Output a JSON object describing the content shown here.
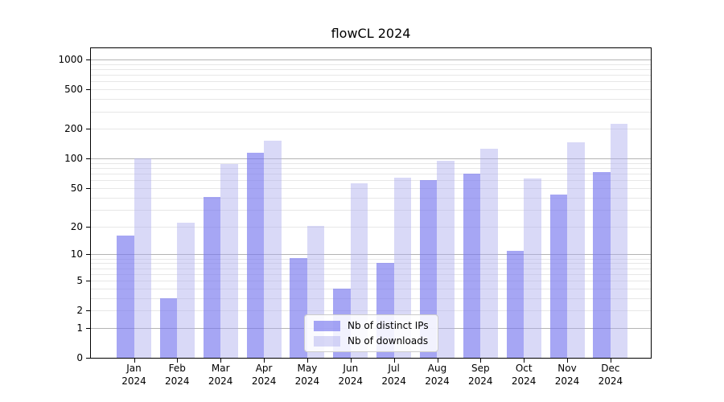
{
  "title": "flowCL 2024",
  "colors": {
    "ips_bar": "rgba(119,119,238,0.65)",
    "downloads_bar": "rgba(170,170,238,0.45)",
    "grid_major": "#b4b4b4",
    "grid_minor": "#e7e7e7",
    "axis": "#000000",
    "legend_border": "#cccccc",
    "background": "#ffffff"
  },
  "legend": {
    "items": [
      {
        "label": "Nb of distinct IPs",
        "series": "ips"
      },
      {
        "label": "Nb of downloads",
        "series": "downloads"
      }
    ]
  },
  "chart_data": {
    "type": "bar",
    "title": "flowCL 2024",
    "categories": [
      "Jan 2024",
      "Feb 2024",
      "Mar 2024",
      "Apr 2024",
      "May 2024",
      "Jun 2024",
      "Jul 2024",
      "Aug 2024",
      "Sep 2024",
      "Oct 2024",
      "Nov 2024",
      "Dec 2024"
    ],
    "series": [
      {
        "name": "Nb of distinct IPs",
        "key": "ips",
        "values": [
          16,
          3,
          40,
          115,
          9,
          4,
          8,
          60,
          70,
          11,
          43,
          72
        ]
      },
      {
        "name": "Nb of downloads",
        "key": "downloads",
        "values": [
          100,
          22,
          88,
          150,
          20,
          56,
          64,
          95,
          125,
          62,
          145,
          225
        ]
      }
    ],
    "xlabel": "",
    "ylabel": "",
    "yscale": "log1p",
    "ylim": [
      0,
      1000
    ],
    "ytick_values": [
      0,
      1,
      2,
      5,
      10,
      20,
      50,
      100,
      200,
      500,
      1000
    ],
    "ytick_labels": [
      "0",
      "1",
      "2",
      "5",
      "10",
      "20",
      "50",
      "100",
      "200",
      "500",
      "1000"
    ],
    "grid_major_values": [
      1,
      10,
      100,
      1000
    ],
    "grid_minor_values": [
      2,
      3,
      4,
      5,
      6,
      7,
      8,
      9,
      20,
      30,
      40,
      50,
      60,
      70,
      80,
      90,
      200,
      300,
      400,
      500,
      600,
      700,
      800,
      900
    ],
    "grid": true,
    "legend_position": "lower center"
  }
}
